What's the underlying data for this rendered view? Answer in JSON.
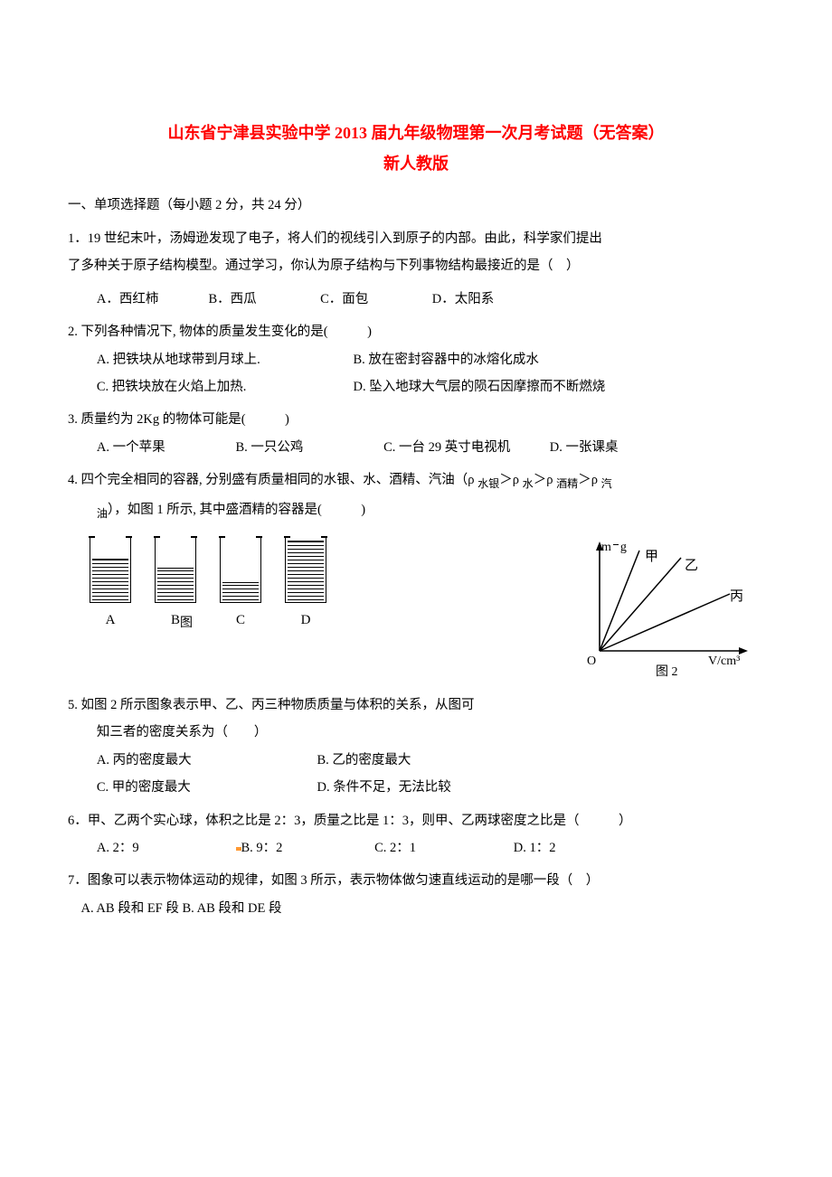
{
  "title_line1": "山东省宁津县实验中学 2013 届九年级物理第一次月考试题（无答案）",
  "title_line2": "新人教版",
  "section1_heading": "一、单项选择题（每小题 2 分，共 24 分）",
  "q1": {
    "text1": "1．19 世纪末叶，汤姆逊发现了电子，将人们的视线引入到原子的内部。由此，科学家们提出",
    "text2": "了多种关于原子结构模型。通过学习，你认为原子结构与下列事物结构最接近的是（　）",
    "optA": "A．西红柿",
    "optB": "B．西瓜",
    "optC": "C．面包",
    "optD": "D．太阳系"
  },
  "q2": {
    "text": "2. 下列各种情况下, 物体的质量发生变化的是(　　　)",
    "optA": "A. 把铁块从地球带到月球上.",
    "optB": "B. 放在密封容器中的冰熔化成水",
    "optC": "C. 把铁块放在火焰上加热.",
    "optD": "D. 坠入地球大气层的陨石因摩擦而不断燃烧"
  },
  "q3": {
    "text": "3. 质量约为 2Kg 的物体可能是(　　　)",
    "optA": "A. 一个苹果",
    "optB": "B. 一只公鸡",
    "optC": "C. 一台 29 英寸电视机",
    "optD": "D. 一张课桌"
  },
  "q4": {
    "text1": "4. 四个完全相同的容器, 分别盛有质量相同的水银、水、酒精、汽油（ρ ",
    "sub1": "水银",
    "gt1": "＞ρ ",
    "sub2": "水",
    "gt2": "＞ρ ",
    "sub3": "酒精",
    "gt3": "＞ρ ",
    "sub4": "汽",
    "text2_prefix": "油",
    "text2": "），如图 1 所示, 其中盛酒精的容器是(　　　)"
  },
  "fig1": {
    "labelA": "A",
    "heightA": 46,
    "labelB": "B",
    "heightB": 36,
    "labelC": "C",
    "heightC": 20,
    "labelD": "D",
    "heightD": 66,
    "caption": "图"
  },
  "fig2": {
    "y_label": "m  g",
    "x_label": "V/cm³",
    "line1": "甲",
    "line2": "乙",
    "line3": "丙",
    "origin": "O",
    "caption": "图 2",
    "axis_color": "#000000",
    "line_color": "#000000",
    "text_color": "#000000",
    "fontsize": 14
  },
  "q5": {
    "text1": "5. 如图 2 所示图象表示甲、乙、丙三种物质质量与体积的关系，从图可",
    "text2": "知三者的密度关系为（　　）",
    "optA": "A. 丙的密度最大",
    "optB": "B. 乙的密度最大",
    "optC": "C. 甲的密度最大",
    "optD": "D. 条件不足，无法比较"
  },
  "q6": {
    "text": "6．甲、乙两个实心球，体积之比是 2：3，质量之比是 1：3，则甲、乙两球密度之比是（　　　）",
    "optA": "A. 2：9",
    "optB": "B. 9：2",
    "optC": "C. 2：1",
    "optD": "D. 1：2"
  },
  "q7": {
    "text": "7．图象可以表示物体运动的规律，如图 3 所示，表示物体做匀速直线运动的是哪一段（　）",
    "optA": "A. AB 段和 EF 段",
    "optB": "B. AB 段和 DE 段"
  }
}
